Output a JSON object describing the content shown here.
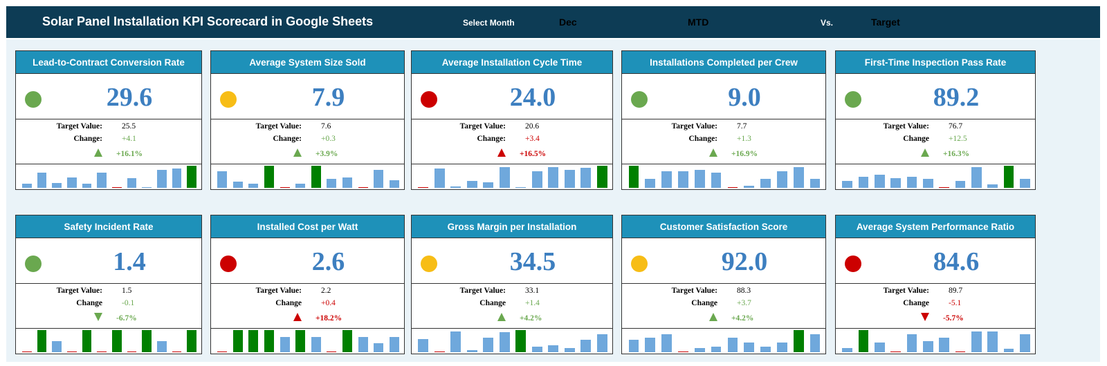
{
  "header": {
    "title": "Solar Panel Installation KPI Scorecard in Google Sheets",
    "select_month_label": "Select Month",
    "month_value": "Dec",
    "period_value": "MTD",
    "vs_label": "Vs.",
    "compare_value": "Target"
  },
  "colors": {
    "header_bg": "#0d3c55",
    "card_title_bg": "#1e91b9",
    "value_blue": "#3d7fc0",
    "green_dot": "#6aa84f",
    "yellow_dot": "#f7bd16",
    "red_dot": "#cc0000",
    "bar_blue": "#6fa8dc",
    "bar_green": "#008000",
    "bar_red": "#cc0000",
    "positive_text": "#6aa84f",
    "negative_text": "#cc0000"
  },
  "cards": [
    {
      "title": "Lead-to-Contract Conversion Rate",
      "value": "29.6",
      "status": "green",
      "target_label": "Target Value:",
      "target_value": "25.5",
      "change_label": "Change:",
      "change_value": "+4.1",
      "direction": "up",
      "trend_color": "green",
      "pct": "+16.1%",
      "bars": [
        {
          "v": 0.2,
          "t": "blue"
        },
        {
          "v": 0.7,
          "t": "blue"
        },
        {
          "v": 0.22,
          "t": "blue"
        },
        {
          "v": 0.48,
          "t": "blue"
        },
        {
          "v": 0.2,
          "t": "blue"
        },
        {
          "v": 0.7,
          "t": "blue"
        },
        {
          "v": 0.03,
          "t": "red"
        },
        {
          "v": 0.45,
          "t": "blue"
        },
        {
          "v": 0.03,
          "t": "blue"
        },
        {
          "v": 0.8,
          "t": "blue"
        },
        {
          "v": 0.86,
          "t": "blue"
        },
        {
          "v": 1.0,
          "t": "green"
        }
      ]
    },
    {
      "title": "Average System Size Sold",
      "value": "7.9",
      "status": "yellow",
      "target_label": "Target Value:",
      "target_value": "7.6",
      "change_label": "Change:",
      "change_value": "+0.3",
      "direction": "up",
      "trend_color": "green",
      "pct": "+3.9%",
      "bars": [
        {
          "v": 0.75,
          "t": "blue"
        },
        {
          "v": 0.28,
          "t": "blue"
        },
        {
          "v": 0.18,
          "t": "blue"
        },
        {
          "v": 1.0,
          "t": "green"
        },
        {
          "v": 0.03,
          "t": "red"
        },
        {
          "v": 0.18,
          "t": "blue"
        },
        {
          "v": 1.0,
          "t": "green"
        },
        {
          "v": 0.42,
          "t": "blue"
        },
        {
          "v": 0.47,
          "t": "blue"
        },
        {
          "v": 0.03,
          "t": "red"
        },
        {
          "v": 0.8,
          "t": "blue"
        },
        {
          "v": 0.35,
          "t": "blue"
        }
      ]
    },
    {
      "title": "Average Installation Cycle Time",
      "value": "24.0",
      "status": "red",
      "target_label": "Target Value:",
      "target_value": "20.6",
      "change_label": "Change:",
      "change_value": "+3.4",
      "direction": "up",
      "trend_color": "red",
      "pct": "+16.5%",
      "bars": [
        {
          "v": 0.03,
          "t": "red"
        },
        {
          "v": 0.88,
          "t": "blue"
        },
        {
          "v": 0.05,
          "t": "blue"
        },
        {
          "v": 0.3,
          "t": "blue"
        },
        {
          "v": 0.25,
          "t": "blue"
        },
        {
          "v": 0.95,
          "t": "blue"
        },
        {
          "v": 0.03,
          "t": "blue"
        },
        {
          "v": 0.75,
          "t": "blue"
        },
        {
          "v": 0.95,
          "t": "blue"
        },
        {
          "v": 0.8,
          "t": "blue"
        },
        {
          "v": 0.9,
          "t": "blue"
        },
        {
          "v": 1.0,
          "t": "green"
        }
      ]
    },
    {
      "title": "Installations Completed per Crew",
      "value": "9.0",
      "status": "green",
      "target_label": "Target Value:",
      "target_value": "7.7",
      "change_label": "Change:",
      "change_value": "+1.3",
      "direction": "up",
      "trend_color": "green",
      "pct": "+16.9%",
      "bars": [
        {
          "v": 1.0,
          "t": "green"
        },
        {
          "v": 0.4,
          "t": "blue"
        },
        {
          "v": 0.75,
          "t": "blue"
        },
        {
          "v": 0.75,
          "t": "blue"
        },
        {
          "v": 0.8,
          "t": "blue"
        },
        {
          "v": 0.7,
          "t": "blue"
        },
        {
          "v": 0.03,
          "t": "red"
        },
        {
          "v": 0.1,
          "t": "blue"
        },
        {
          "v": 0.42,
          "t": "blue"
        },
        {
          "v": 0.75,
          "t": "blue"
        },
        {
          "v": 0.95,
          "t": "blue"
        },
        {
          "v": 0.42,
          "t": "blue"
        }
      ]
    },
    {
      "title": "First-Time Inspection Pass Rate",
      "value": "89.2",
      "status": "green",
      "target_label": "Target Value:",
      "target_value": "76.7",
      "change_label": "Change",
      "change_value": "+12.5",
      "direction": "up",
      "trend_color": "green",
      "pct": "+16.3%",
      "bars": [
        {
          "v": 0.3,
          "t": "blue"
        },
        {
          "v": 0.5,
          "t": "blue"
        },
        {
          "v": 0.6,
          "t": "blue"
        },
        {
          "v": 0.45,
          "t": "blue"
        },
        {
          "v": 0.5,
          "t": "blue"
        },
        {
          "v": 0.42,
          "t": "blue"
        },
        {
          "v": 0.03,
          "t": "red"
        },
        {
          "v": 0.3,
          "t": "blue"
        },
        {
          "v": 0.95,
          "t": "blue"
        },
        {
          "v": 0.15,
          "t": "blue"
        },
        {
          "v": 1.0,
          "t": "green"
        },
        {
          "v": 0.42,
          "t": "blue"
        }
      ]
    },
    {
      "title": "Safety Incident Rate",
      "value": "1.4",
      "status": "green",
      "target_label": "Target Value:",
      "target_value": "1.5",
      "change_label": "Change",
      "change_value": "-0.1",
      "direction": "down",
      "trend_color": "green",
      "pct": "-6.7%",
      "bars": [
        {
          "v": 0.03,
          "t": "red"
        },
        {
          "v": 1.0,
          "t": "green"
        },
        {
          "v": 0.5,
          "t": "blue"
        },
        {
          "v": 0.03,
          "t": "red"
        },
        {
          "v": 1.0,
          "t": "green"
        },
        {
          "v": 0.03,
          "t": "red"
        },
        {
          "v": 1.0,
          "t": "green"
        },
        {
          "v": 0.03,
          "t": "red"
        },
        {
          "v": 1.0,
          "t": "green"
        },
        {
          "v": 0.5,
          "t": "blue"
        },
        {
          "v": 0.03,
          "t": "red"
        },
        {
          "v": 1.0,
          "t": "green"
        }
      ]
    },
    {
      "title": "Installed Cost per Watt",
      "value": "2.6",
      "status": "red",
      "target_label": "Target Value:",
      "target_value": "2.2",
      "change_label": "Change",
      "change_value": "+0.4",
      "direction": "up",
      "trend_color": "red",
      "pct": "+18.2%",
      "bars": [
        {
          "v": 0.03,
          "t": "red"
        },
        {
          "v": 1.0,
          "t": "green"
        },
        {
          "v": 1.0,
          "t": "green"
        },
        {
          "v": 1.0,
          "t": "green"
        },
        {
          "v": 0.7,
          "t": "blue"
        },
        {
          "v": 1.0,
          "t": "green"
        },
        {
          "v": 0.7,
          "t": "blue"
        },
        {
          "v": 0.03,
          "t": "red"
        },
        {
          "v": 1.0,
          "t": "green"
        },
        {
          "v": 0.7,
          "t": "blue"
        },
        {
          "v": 0.4,
          "t": "blue"
        },
        {
          "v": 0.7,
          "t": "blue"
        }
      ]
    },
    {
      "title": "Gross Margin per Installation",
      "value": "34.5",
      "status": "yellow",
      "target_label": "Target Value:",
      "target_value": "33.1",
      "change_label": "Change",
      "change_value": "+1.4",
      "direction": "up",
      "trend_color": "green",
      "pct": "+4.2%",
      "bars": [
        {
          "v": 0.6,
          "t": "blue"
        },
        {
          "v": 0.03,
          "t": "red"
        },
        {
          "v": 0.95,
          "t": "blue"
        },
        {
          "v": 0.1,
          "t": "blue"
        },
        {
          "v": 0.65,
          "t": "blue"
        },
        {
          "v": 0.9,
          "t": "blue"
        },
        {
          "v": 1.0,
          "t": "green"
        },
        {
          "v": 0.25,
          "t": "blue"
        },
        {
          "v": 0.3,
          "t": "blue"
        },
        {
          "v": 0.2,
          "t": "blue"
        },
        {
          "v": 0.55,
          "t": "blue"
        },
        {
          "v": 0.8,
          "t": "blue"
        }
      ]
    },
    {
      "title": "Customer Satisfaction Score",
      "value": "92.0",
      "status": "yellow",
      "target_label": "Target Value:",
      "target_value": "88.3",
      "change_label": "Change",
      "change_value": "+3.7",
      "direction": "up",
      "trend_color": "green",
      "pct": "+4.2%",
      "bars": [
        {
          "v": 0.55,
          "t": "blue"
        },
        {
          "v": 0.65,
          "t": "blue"
        },
        {
          "v": 0.8,
          "t": "blue"
        },
        {
          "v": 0.03,
          "t": "red"
        },
        {
          "v": 0.2,
          "t": "blue"
        },
        {
          "v": 0.25,
          "t": "blue"
        },
        {
          "v": 0.65,
          "t": "blue"
        },
        {
          "v": 0.45,
          "t": "blue"
        },
        {
          "v": 0.25,
          "t": "blue"
        },
        {
          "v": 0.45,
          "t": "blue"
        },
        {
          "v": 1.0,
          "t": "green"
        },
        {
          "v": 0.8,
          "t": "blue"
        }
      ]
    },
    {
      "title": "Average System Performance Ratio",
      "value": "84.6",
      "status": "red",
      "target_label": "Target Value:",
      "target_value": "89.7",
      "change_label": "Change",
      "change_value": "-5.1",
      "direction": "down",
      "trend_color": "red",
      "pct": "-5.7%",
      "bars": [
        {
          "v": 0.2,
          "t": "blue"
        },
        {
          "v": 1.0,
          "t": "green"
        },
        {
          "v": 0.45,
          "t": "blue"
        },
        {
          "v": 0.03,
          "t": "red"
        },
        {
          "v": 0.8,
          "t": "blue"
        },
        {
          "v": 0.5,
          "t": "blue"
        },
        {
          "v": 0.65,
          "t": "blue"
        },
        {
          "v": 0.03,
          "t": "red"
        },
        {
          "v": 0.95,
          "t": "blue"
        },
        {
          "v": 0.95,
          "t": "blue"
        },
        {
          "v": 0.15,
          "t": "blue"
        },
        {
          "v": 0.8,
          "t": "blue"
        }
      ]
    }
  ]
}
